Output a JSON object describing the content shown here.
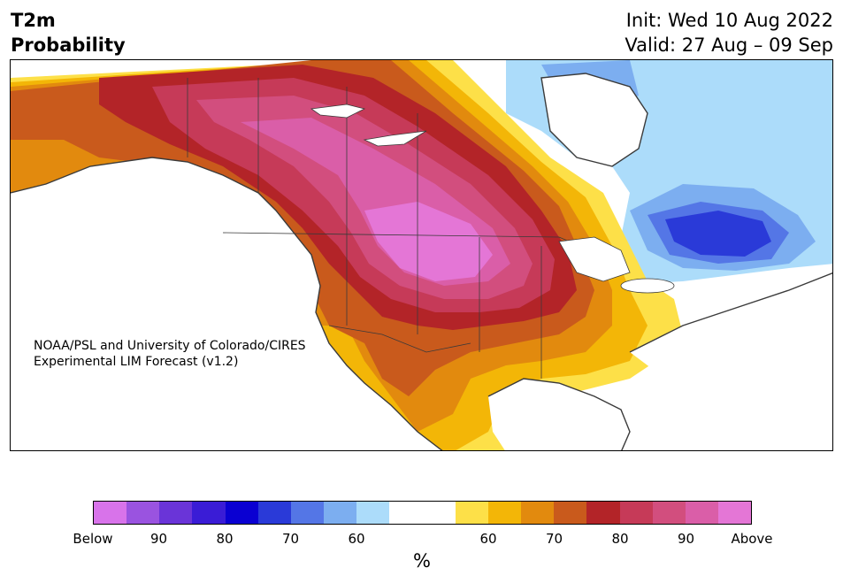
{
  "header": {
    "title_line1": "T2m",
    "title_line2": "Probability",
    "init": "Init: Wed 10 Aug 2022",
    "valid": "Valid: 27 Aug – 09 Sep"
  },
  "credit": {
    "line1": "NOAA/PSL and University of Colorado/CIRES",
    "line2": "Experimental LIM Forecast (v1.2)"
  },
  "colorbar": {
    "colors": [
      "#d873ea",
      "#9a53e0",
      "#6a34d8",
      "#3a1cd6",
      "#0a00d2",
      "#2a3ad8",
      "#5476e6",
      "#7caef0",
      "#acdcfa",
      "#ffffff",
      "#ffffff",
      "#fde048",
      "#f3b607",
      "#e28a0e",
      "#c95a1c",
      "#b32428",
      "#c63a58",
      "#d24e7e",
      "#da5ea8",
      "#e476d6"
    ],
    "tick_labels": [
      "Below",
      "90",
      "80",
      "70",
      "60",
      "60",
      "70",
      "80",
      "90",
      "Above"
    ],
    "unit": "%"
  },
  "map": {
    "region": "North America",
    "legend_colors": {
      "below_strong": "#2a3ad8",
      "below_weak": "#acdcfa",
      "above_moderate": "#f3b607",
      "above_strong": "#b32428",
      "above_extreme": "#e476d6"
    }
  }
}
